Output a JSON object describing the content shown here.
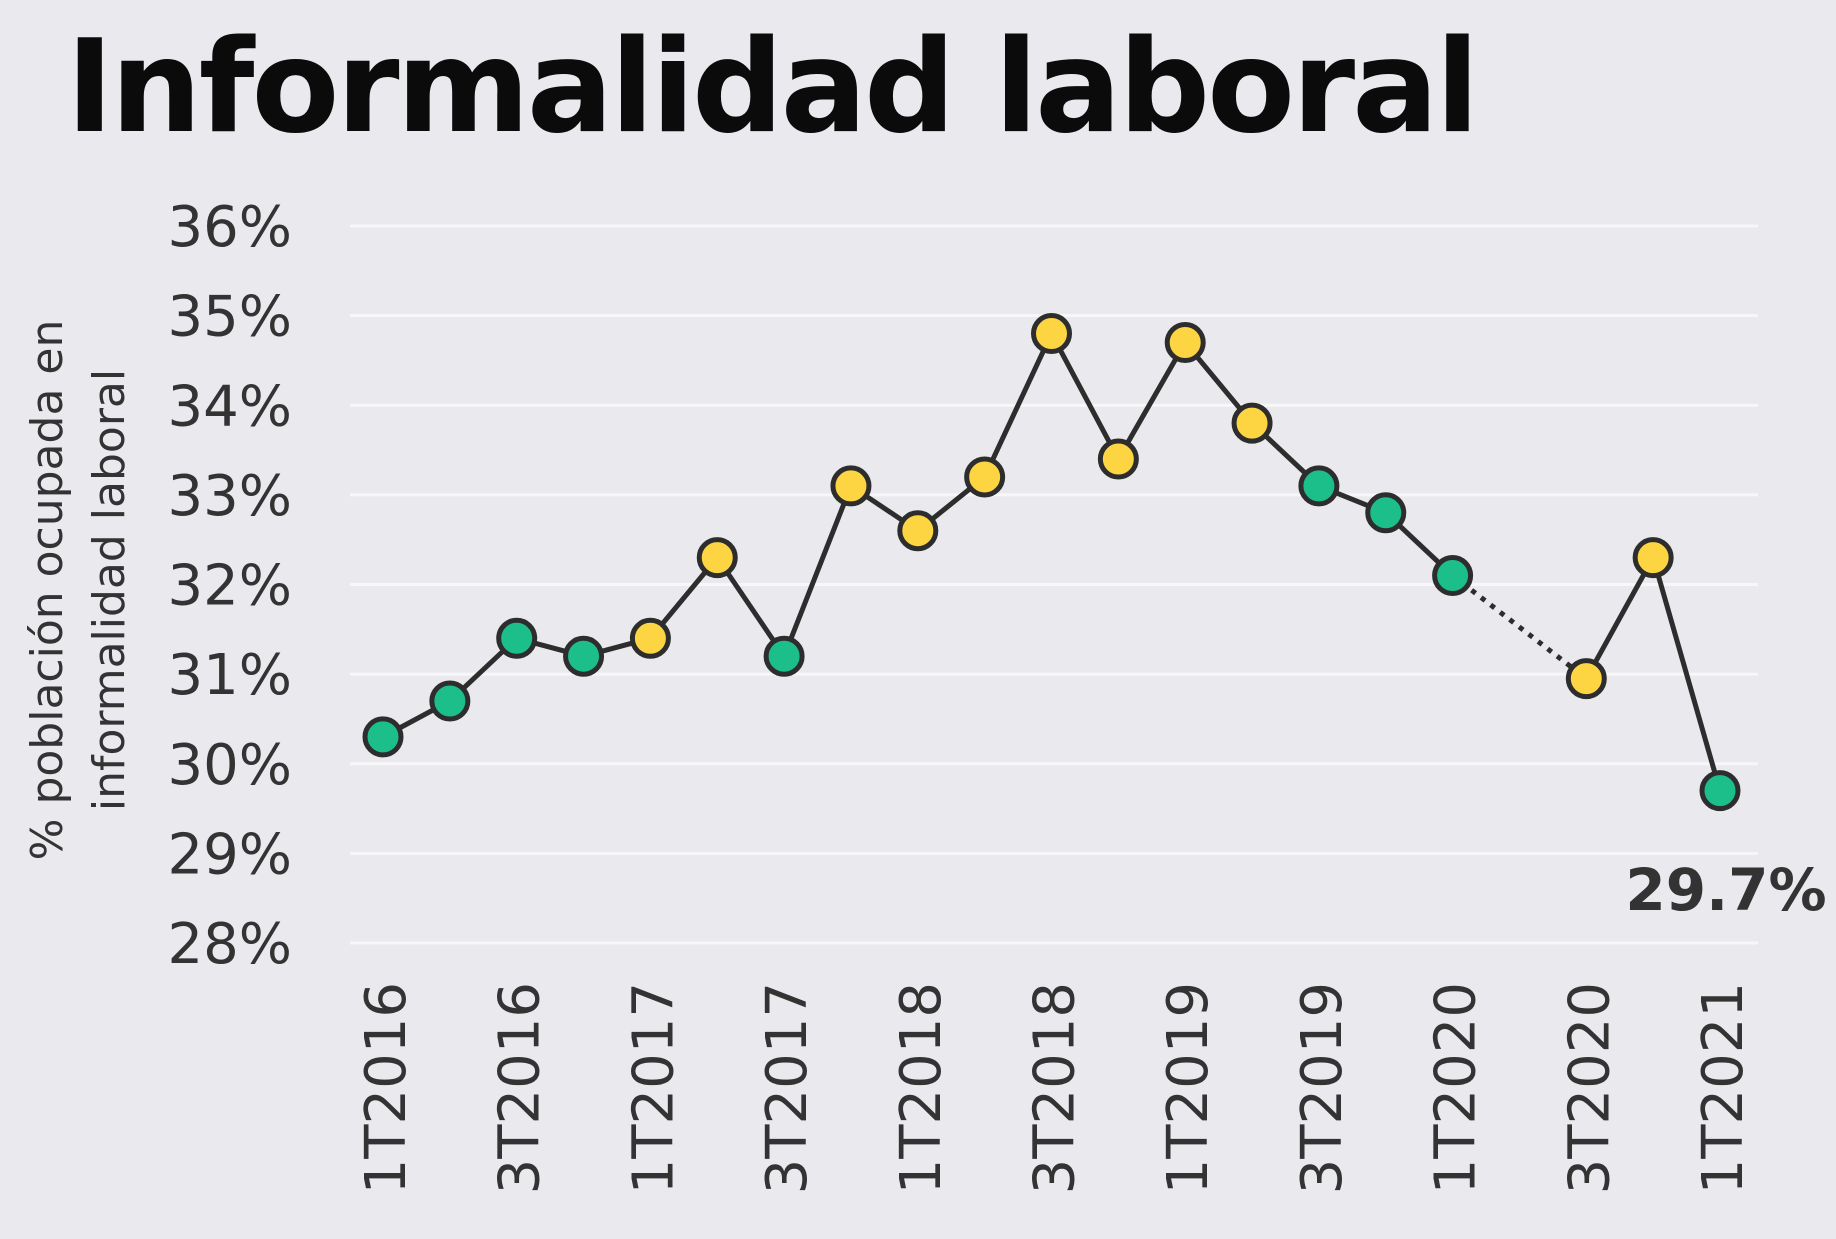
{
  "chart_data": {
    "type": "line",
    "title": "Informalidad laboral",
    "ylabel": [
      "% población ocupada en",
      "informalidad laboral"
    ],
    "xlabel": "",
    "ylim": [
      28,
      36
    ],
    "y_ticks": [
      "28%",
      "29%",
      "30%",
      "31%",
      "32%",
      "33%",
      "34%",
      "35%",
      "36%"
    ],
    "y_tick_values": [
      28,
      29,
      30,
      31,
      32,
      33,
      34,
      35,
      36
    ],
    "grid": true,
    "x": [
      "1T2016",
      "2T2016",
      "3T2016",
      "4T2016",
      "1T2017",
      "2T2017",
      "3T2017",
      "4T2017",
      "1T2018",
      "2T2018",
      "3T2018",
      "4T2018",
      "1T2019",
      "2T2019",
      "3T2019",
      "4T2019",
      "1T2020",
      "2T2020",
      "3T2020",
      "4T2020",
      "1T2021"
    ],
    "x_tick_labels": [
      "1T2016",
      "",
      "3T2016",
      "",
      "1T2017",
      "",
      "3T2017",
      "",
      "1T2018",
      "",
      "3T2018",
      "",
      "1T2019",
      "",
      "3T2019",
      "",
      "1T2020",
      "",
      "3T2020",
      "",
      "1T2021"
    ],
    "series": [
      {
        "values": [
          30.3,
          30.7,
          31.4,
          31.2,
          31.4,
          32.3,
          31.2,
          33.1,
          32.6,
          33.2,
          34.8,
          33.4,
          34.7,
          33.8,
          33.1,
          32.8,
          32.1,
          null,
          30.95,
          32.3,
          29.7
        ],
        "point_colors": [
          "green",
          "green",
          "green",
          "green",
          "yellow",
          "yellow",
          "green",
          "yellow",
          "yellow",
          "yellow",
          "yellow",
          "yellow",
          "yellow",
          "yellow",
          "green",
          "green",
          "green",
          null,
          "yellow",
          "yellow",
          "green"
        ],
        "dotted_gap": {
          "from": "1T2020",
          "to": "3T2020"
        }
      }
    ],
    "colors": {
      "green": "#1cbf8a",
      "yellow": "#fdd543",
      "line": "#2d2d2d",
      "grid": "#f7f7f9",
      "background": "#e9e9ee"
    },
    "annotations": [
      {
        "x": "1T2021",
        "text": "29.7%"
      }
    ]
  }
}
